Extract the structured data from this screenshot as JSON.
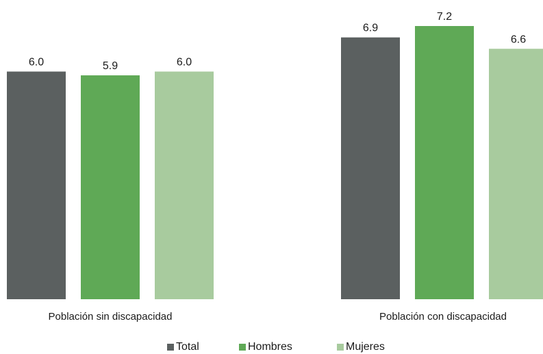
{
  "chart_data": {
    "type": "bar",
    "categories": [
      "Población sin discapacidad",
      "Población con discapacidad"
    ],
    "series": [
      {
        "name": "Total",
        "values": [
          6.0,
          6.9
        ],
        "color": "#5b6060"
      },
      {
        "name": "Hombres",
        "values": [
          5.9,
          7.2
        ],
        "color": "#5fa956"
      },
      {
        "name": "Mujeres",
        "values": [
          6.0,
          6.6
        ],
        "color": "#a8cb9e"
      }
    ],
    "value_labels": [
      [
        "6.0",
        "5.9",
        "6.0"
      ],
      [
        "6.9",
        "7.2",
        "6.6"
      ]
    ],
    "title": "",
    "xlabel": "",
    "ylabel": "",
    "ylim": [
      0,
      7.2
    ],
    "grid": false,
    "legend_position": "bottom-center"
  }
}
